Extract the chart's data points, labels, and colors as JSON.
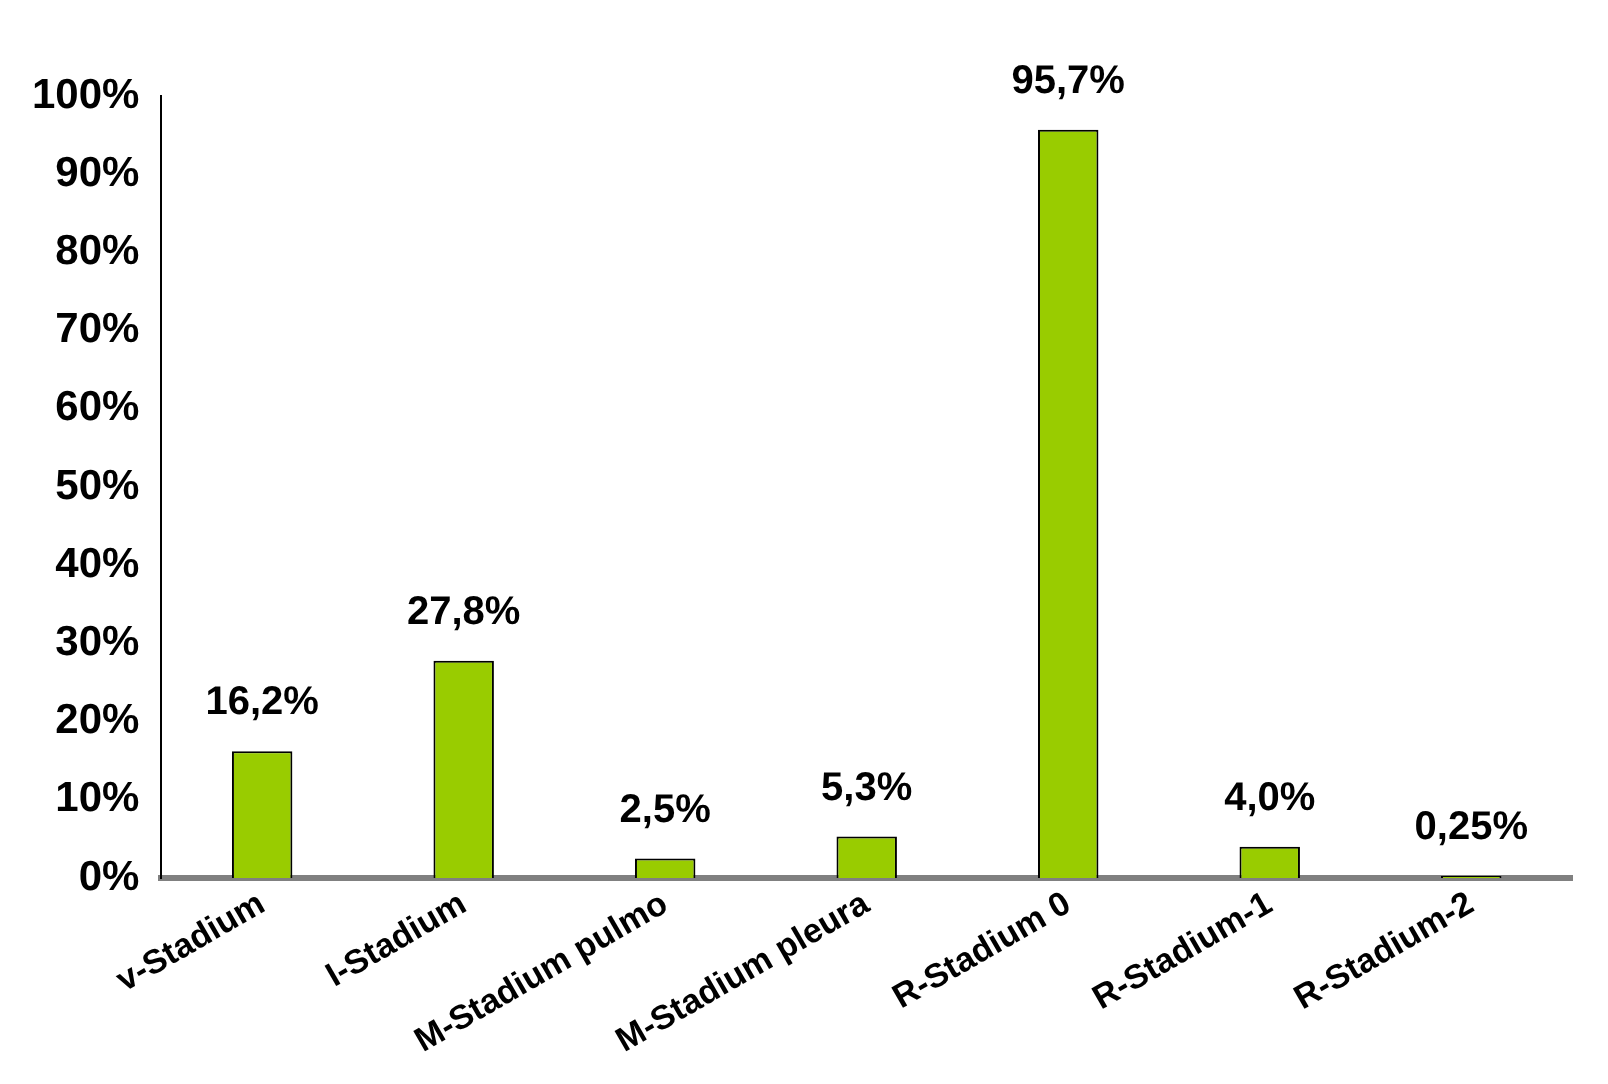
{
  "chart_data": {
    "type": "bar",
    "categories": [
      "v-Stadium",
      "I-Stadium",
      "M-Stadium pulmo",
      "M-Stadium pleura",
      "R-Stadium 0",
      "R-Stadium-1",
      "R-Stadium-2"
    ],
    "values": [
      16.2,
      27.8,
      2.5,
      5.3,
      95.7,
      4.0,
      0.25
    ],
    "value_labels": [
      "16,2%",
      "27,8%",
      "2,5%",
      "5,3%",
      "95,7%",
      "4,0%",
      "0,25%"
    ],
    "color": "#99cc00",
    "ylim": [
      0,
      100
    ],
    "yticks": [
      {
        "value": 0,
        "label": "0%"
      },
      {
        "value": 10,
        "label": "10%"
      },
      {
        "value": 20,
        "label": "20%"
      },
      {
        "value": 30,
        "label": "30%"
      },
      {
        "value": 40,
        "label": "40%"
      },
      {
        "value": 50,
        "label": "50%"
      },
      {
        "value": 60,
        "label": "60%"
      },
      {
        "value": 70,
        "label": "70%"
      },
      {
        "value": 80,
        "label": "80%"
      },
      {
        "value": 90,
        "label": "90%"
      },
      {
        "value": 100,
        "label": "100%"
      }
    ],
    "grid": false,
    "legend": false
  }
}
